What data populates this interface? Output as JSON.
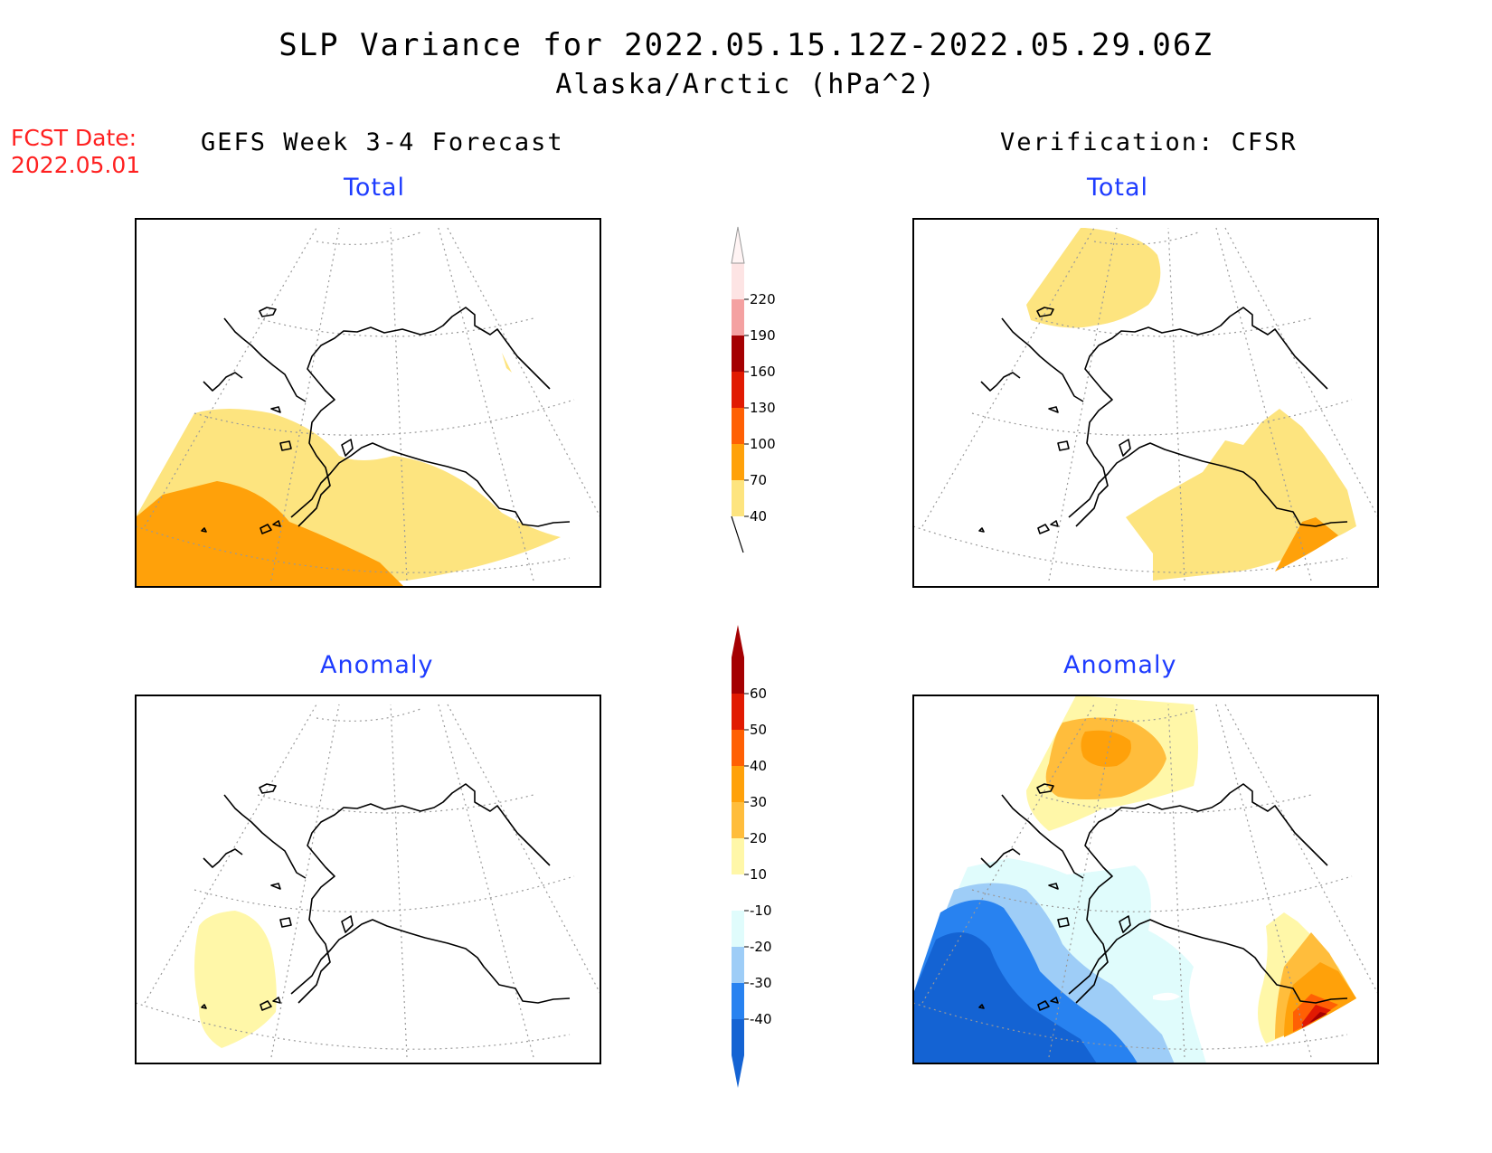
{
  "header": {
    "title": "SLP Variance for 2022.05.15.12Z-2022.05.29.06Z",
    "subtitle": "Alaska/Arctic (hPa^2)"
  },
  "fcst": {
    "label": "FCST Date:",
    "date": "2022.05.01"
  },
  "columns": {
    "left": "GEFS Week 3-4 Forecast",
    "right": "Verification: CFSR"
  },
  "panels": {
    "forecast_total": "Total",
    "verification_total": "Total",
    "forecast_anomaly": "Anomaly",
    "verification_anomaly": "Anomaly"
  },
  "colorbars": {
    "total": {
      "labels": [
        "40",
        "70",
        "100",
        "130",
        "160",
        "190",
        "220"
      ],
      "colors": [
        "#fde47f",
        "#ffa10a",
        "#ff6004",
        "#e11a02",
        "#a50002",
        "#f4a1a1",
        "#fde4e4"
      ]
    },
    "anomaly": {
      "labels": [
        "-40",
        "-30",
        "-20",
        "-10",
        "10",
        "20",
        "30",
        "40",
        "50",
        "60"
      ],
      "colors": [
        "#1463d3",
        "#2882f0",
        "#9ecdf7",
        "#e0fcfc",
        "#ffffff",
        "#fff7a8",
        "#ffbd3c",
        "#ffa10a",
        "#ff6004",
        "#e11a02",
        "#a50002"
      ]
    }
  }
}
